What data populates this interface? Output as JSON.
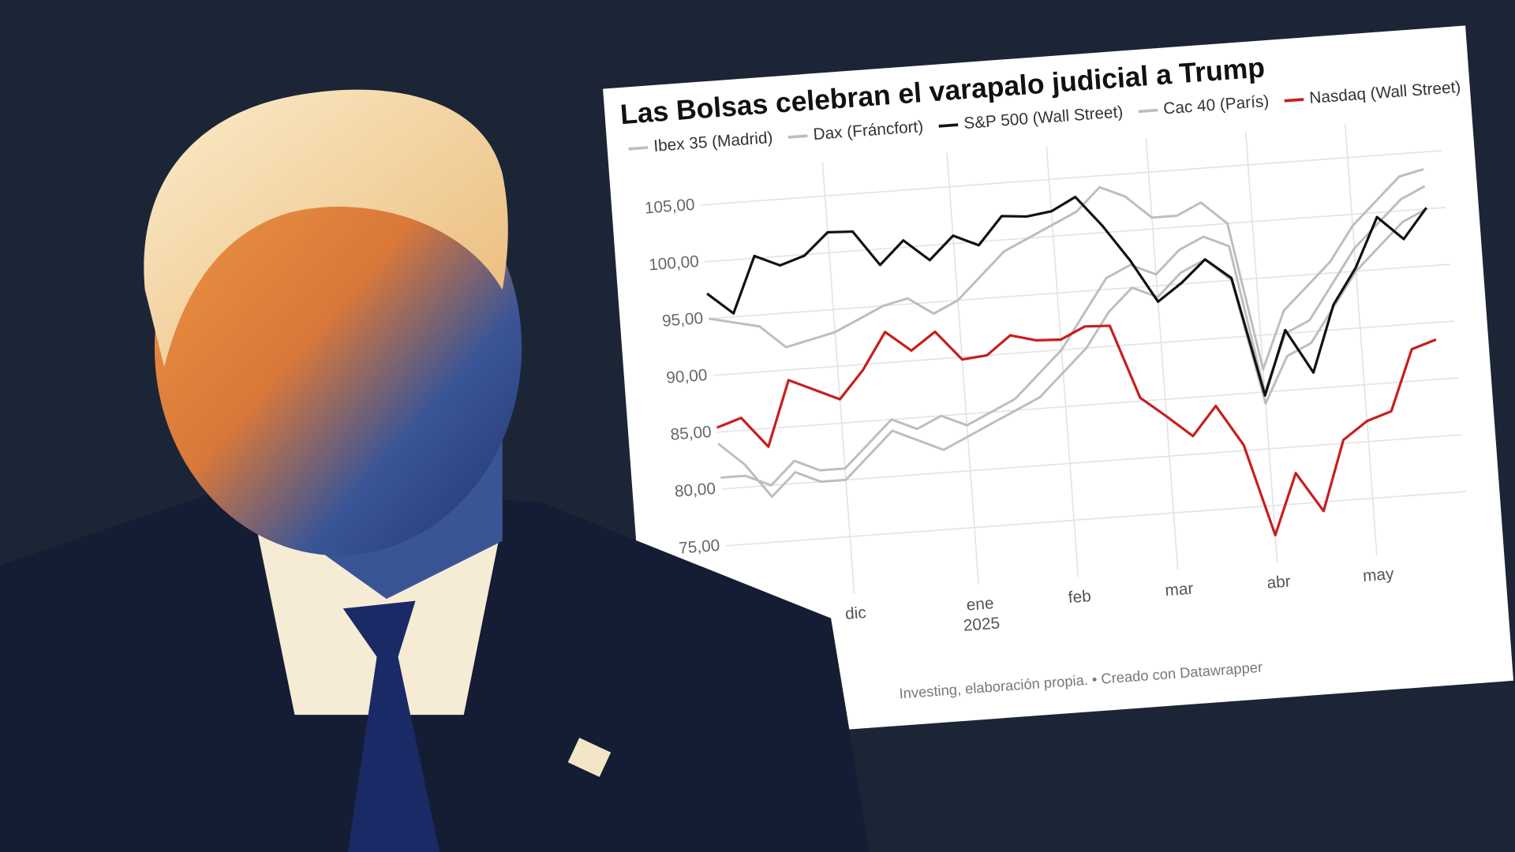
{
  "chart_data": {
    "type": "line",
    "title": "Las Bolsas celebran el varapalo judicial a Trump",
    "source": "Investing, elaboración propia. • Creado con Datawrapper",
    "categories": [
      null,
      null,
      null,
      null,
      null,
      "dic",
      null,
      null,
      null,
      null,
      "ene\n2025",
      null,
      null,
      null,
      "feb",
      null,
      null,
      null,
      "mar",
      null,
      null,
      null,
      "abr",
      null,
      null,
      null,
      "may",
      null,
      null,
      null
    ],
    "series": [
      {
        "name": "Ibex 35 (Madrid)",
        "color": "#bdbdbd",
        "values": [
          95,
          94.5,
          94,
          92,
          92.5,
          93,
          94,
          95,
          95.5,
          94,
          95,
          97,
          99,
          100,
          101,
          102,
          104,
          103,
          101,
          101,
          102,
          100,
          87,
          92,
          94,
          96,
          99,
          101,
          103,
          103.5
        ]
      },
      {
        "name": "Dax (Fráncfort)",
        "color": "#bdbdbd",
        "values": [
          81,
          81,
          80,
          82,
          81,
          81,
          83,
          85,
          84,
          85,
          84,
          85,
          86,
          88,
          90,
          93,
          96,
          97,
          96,
          98,
          99,
          98,
          85,
          90,
          91,
          94,
          97,
          99,
          101,
          102
        ]
      },
      {
        "name": "S&P 500 (Wall Street)",
        "color": "#111111",
        "values": [
          97.2,
          95.3,
          100.2,
          99.2,
          99.9,
          101.8,
          101.7,
          98.6,
          100.6,
          98.7,
          100.7,
          99.7,
          102.1,
          101.9,
          102.2,
          103.3,
          100.6,
          97.4,
          93.6,
          95.1,
          97,
          95.2,
          84.7,
          90.3,
          86.4,
          92.2,
          95.3,
          99.6,
          97.5,
          100.1
        ]
      },
      {
        "name": "Cac 40 (París)",
        "color": "#bdbdbd",
        "values": [
          84,
          82,
          79,
          81,
          80,
          80,
          82,
          84,
          83,
          82,
          83,
          84,
          85,
          86,
          88,
          90,
          93,
          95,
          94,
          96,
          97,
          95,
          84,
          88,
          89,
          92,
          95,
          97,
          99,
          100
        ]
      },
      {
        "name": "Nasdaq (Wall Street)",
        "color": "#c71e1d",
        "values": [
          85.4,
          86.1,
          83.4,
          89.1,
          88.1,
          87.1,
          89.5,
          92.7,
          90.9,
          92.4,
          89.8,
          90,
          91.6,
          91,
          90.9,
          91.9,
          91.8,
          85.3,
          83.5,
          81.6,
          84.1,
          80.5,
          72.4,
          77.7,
          74.2,
          80.3,
          81.8,
          82.5,
          87.8,
          88.5
        ]
      }
    ],
    "ylim": [
      70,
      108
    ],
    "yticks": [
      {
        "value": 75,
        "label": "75,00"
      },
      {
        "value": 80,
        "label": "80,00"
      },
      {
        "value": 85,
        "label": "85,00"
      },
      {
        "value": 90,
        "label": "90,00"
      },
      {
        "value": 95,
        "label": "95,00"
      },
      {
        "value": 100,
        "label": "100,00"
      },
      {
        "value": 105,
        "label": "105,00"
      }
    ],
    "grid": true
  }
}
